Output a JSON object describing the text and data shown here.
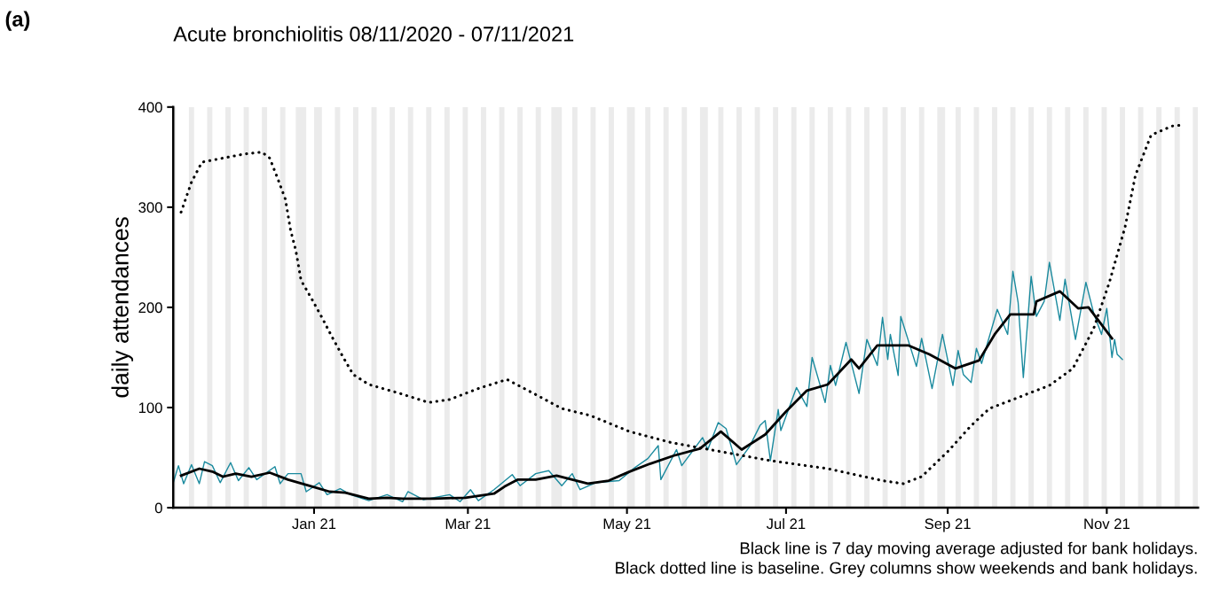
{
  "chart_data": {
    "type": "line",
    "title": "Acute bronchiolitis 08/11/2020 - 07/11/2021",
    "ylabel": "daily attendances",
    "annotations": [
      "(a)",
      "Black line is 7 day moving average adjusted for bank holidays.\nBlack dotted line is baseline. Grey columns show weekends and bank holidays."
    ],
    "xlim": [
      "2020-11-08",
      "2021-12-06"
    ],
    "xticks": [
      {
        "value": "2021-01-01",
        "label": "Jan 21"
      },
      {
        "value": "2021-03-01",
        "label": "Mar 21"
      },
      {
        "value": "2021-05-01",
        "label": "May 21"
      },
      {
        "value": "2021-07-01",
        "label": "Jul 21"
      },
      {
        "value": "2021-09-01",
        "label": "Sep 21"
      },
      {
        "value": "2021-11-01",
        "label": "Nov 21"
      }
    ],
    "ylim": [
      0,
      400
    ],
    "yticks": [
      0,
      100,
      200,
      300,
      400
    ],
    "grid": false,
    "legend": false,
    "series": [
      {
        "color": "#1a8a9e",
        "line_style": "solid",
        "x": [
          "2020-11-08",
          "2020-11-10",
          "2020-11-12",
          "2020-11-15",
          "2020-11-18",
          "2020-11-20",
          "2020-11-23",
          "2020-11-26",
          "2020-11-30",
          "2020-12-03",
          "2020-12-07",
          "2020-12-10",
          "2020-12-17",
          "2020-12-19",
          "2020-12-22",
          "2020-12-27",
          "2020-12-29",
          "2021-01-03",
          "2021-01-06",
          "2021-01-11",
          "2021-01-15",
          "2021-01-22",
          "2021-01-29",
          "2021-02-04",
          "2021-02-06",
          "2021-02-12",
          "2021-02-22",
          "2021-02-26",
          "2021-03-02",
          "2021-03-05",
          "2021-03-11",
          "2021-03-18",
          "2021-03-21",
          "2021-03-27",
          "2021-04-01",
          "2021-04-06",
          "2021-04-10",
          "2021-04-13",
          "2021-04-19",
          "2021-04-28",
          "2021-05-04",
          "2021-05-09",
          "2021-05-13",
          "2021-05-14",
          "2021-05-20",
          "2021-05-22",
          "2021-05-30",
          "2021-06-01",
          "2021-06-05",
          "2021-06-08",
          "2021-06-12",
          "2021-06-17",
          "2021-06-21",
          "2021-06-23",
          "2021-06-25",
          "2021-06-28",
          "2021-06-29",
          "2021-07-05",
          "2021-07-09",
          "2021-07-11",
          "2021-07-16",
          "2021-07-18",
          "2021-07-20",
          "2021-07-24",
          "2021-07-29",
          "2021-08-01",
          "2021-08-05",
          "2021-08-07",
          "2021-08-09",
          "2021-08-10",
          "2021-08-13",
          "2021-08-14",
          "2021-08-20",
          "2021-08-22",
          "2021-08-26",
          "2021-08-30",
          "2021-09-03",
          "2021-09-05",
          "2021-09-07",
          "2021-09-10",
          "2021-09-12",
          "2021-09-14",
          "2021-09-20",
          "2021-09-24",
          "2021-09-26",
          "2021-09-28",
          "2021-09-30",
          "2021-10-03",
          "2021-10-05",
          "2021-10-08",
          "2021-10-10",
          "2021-10-14",
          "2021-10-16",
          "2021-10-20",
          "2021-10-24",
          "2021-10-27",
          "2021-10-30",
          "2021-11-01",
          "2021-11-03",
          "2021-11-04",
          "2021-11-05",
          "2021-11-07"
        ],
        "values": [
          25,
          42,
          24,
          43,
          24,
          46,
          42,
          25,
          45,
          27,
          40,
          28,
          41,
          24,
          34,
          34,
          16,
          25,
          13,
          19,
          13,
          7,
          13,
          6,
          16,
          8,
          13,
          6,
          18,
          7,
          18,
          33,
          22,
          34,
          37,
          22,
          34,
          18,
          25,
          27,
          40,
          49,
          62,
          28,
          58,
          42,
          70,
          58,
          85,
          79,
          43,
          61,
          82,
          87,
          47,
          98,
          77,
          120,
          101,
          150,
          105,
          142,
          122,
          165,
          114,
          168,
          142,
          190,
          148,
          173,
          132,
          191,
          141,
          169,
          119,
          173,
          122,
          157,
          133,
          125,
          159,
          144,
          198,
          173,
          236,
          205,
          130,
          231,
          191,
          206,
          245,
          187,
          228,
          168,
          225,
          194,
          173,
          199,
          150,
          168,
          153,
          148
        ]
      },
      {
        "color": "#000000",
        "line_style": "solid",
        "x": [
          "2020-11-11",
          "2020-11-18",
          "2020-11-23",
          "2020-11-27",
          "2020-12-02",
          "2020-12-08",
          "2020-12-15",
          "2020-12-22",
          "2020-12-30",
          "2021-01-07",
          "2021-01-13",
          "2021-01-22",
          "2021-01-29",
          "2021-02-04",
          "2021-02-16",
          "2021-02-28",
          "2021-03-11",
          "2021-03-15",
          "2021-03-20",
          "2021-03-27",
          "2021-04-04",
          "2021-04-16",
          "2021-04-24",
          "2021-05-02",
          "2021-05-10",
          "2021-05-19",
          "2021-05-29",
          "2021-06-06",
          "2021-06-14",
          "2021-06-23",
          "2021-07-01",
          "2021-07-09",
          "2021-07-17",
          "2021-07-26",
          "2021-07-29",
          "2021-08-05",
          "2021-08-17",
          "2021-08-25",
          "2021-09-04",
          "2021-09-13",
          "2021-09-19",
          "2021-09-25",
          "2021-10-04",
          "2021-10-05",
          "2021-10-14",
          "2021-10-21",
          "2021-10-25",
          "2021-11-03"
        ],
        "values": [
          32,
          39,
          36,
          31,
          34,
          31,
          35,
          28,
          22,
          16,
          15,
          9,
          10,
          9,
          9,
          10,
          14,
          21,
          28,
          28,
          32,
          24,
          27,
          36,
          44,
          52,
          59,
          76,
          58,
          73,
          96,
          117,
          123,
          148,
          139,
          162,
          162,
          153,
          139,
          147,
          173,
          193,
          193,
          206,
          216,
          199,
          200,
          169
        ]
      },
      {
        "color": "#000000",
        "line_style": "dotted",
        "x": [
          "2020-11-11",
          "2020-11-15",
          "2020-11-19",
          "2020-11-27",
          "2020-12-05",
          "2020-12-12",
          "2020-12-15",
          "2020-12-18",
          "2020-12-21",
          "2020-12-23",
          "2020-12-25",
          "2020-12-27",
          "2020-12-31",
          "2021-01-04",
          "2021-01-08",
          "2021-01-12",
          "2021-01-16",
          "2021-01-22",
          "2021-02-03",
          "2021-02-14",
          "2021-02-22",
          "2021-03-05",
          "2021-03-16",
          "2021-03-27",
          "2021-04-06",
          "2021-04-17",
          "2021-05-02",
          "2021-05-18",
          "2021-06-06",
          "2021-06-25",
          "2021-07-17",
          "2021-08-07",
          "2021-08-15",
          "2021-08-22",
          "2021-09-01",
          "2021-09-10",
          "2021-09-17",
          "2021-09-28",
          "2021-10-10",
          "2021-10-19",
          "2021-10-27",
          "2021-11-02",
          "2021-11-08",
          "2021-11-12",
          "2021-11-18",
          "2021-11-26",
          "2021-11-30"
        ],
        "values": [
          295,
          325,
          345,
          349,
          353,
          355,
          349,
          329,
          308,
          277,
          257,
          227,
          209,
          190,
          170,
          151,
          133,
          123,
          114,
          105,
          108,
          119,
          128,
          113,
          99,
          92,
          76,
          65,
          56,
          47,
          39,
          27,
          24,
          31,
          56,
          82,
          99,
          110,
          122,
          139,
          179,
          225,
          280,
          332,
          372,
          381,
          382
        ]
      }
    ],
    "bands": [
      {
        "axis": "x",
        "from": "2020-11-08",
        "to": "2020-11-09",
        "color": "#ebebeb"
      },
      {
        "axis": "x",
        "from": "2020-11-14",
        "to": "2020-11-16",
        "color": "#ebebeb"
      },
      {
        "axis": "x",
        "from": "2020-11-21",
        "to": "2020-11-23",
        "color": "#ebebeb"
      },
      {
        "axis": "x",
        "from": "2020-11-28",
        "to": "2020-11-30",
        "color": "#ebebeb"
      },
      {
        "axis": "x",
        "from": "2020-12-05",
        "to": "2020-12-07",
        "color": "#ebebeb"
      },
      {
        "axis": "x",
        "from": "2020-12-12",
        "to": "2020-12-14",
        "color": "#ebebeb"
      },
      {
        "axis": "x",
        "from": "2020-12-19",
        "to": "2020-12-21",
        "color": "#ebebeb"
      },
      {
        "axis": "x",
        "from": "2020-12-25",
        "to": "2020-12-29",
        "color": "#ebebeb"
      },
      {
        "axis": "x",
        "from": "2021-01-01",
        "to": "2021-01-04",
        "color": "#ebebeb"
      },
      {
        "axis": "x",
        "from": "2021-01-09",
        "to": "2021-01-11",
        "color": "#ebebeb"
      },
      {
        "axis": "x",
        "from": "2021-01-16",
        "to": "2021-01-18",
        "color": "#ebebeb"
      },
      {
        "axis": "x",
        "from": "2021-01-23",
        "to": "2021-01-25",
        "color": "#ebebeb"
      },
      {
        "axis": "x",
        "from": "2021-01-30",
        "to": "2021-02-01",
        "color": "#ebebeb"
      },
      {
        "axis": "x",
        "from": "2021-02-06",
        "to": "2021-02-08",
        "color": "#ebebeb"
      },
      {
        "axis": "x",
        "from": "2021-02-13",
        "to": "2021-02-15",
        "color": "#ebebeb"
      },
      {
        "axis": "x",
        "from": "2021-02-20",
        "to": "2021-02-22",
        "color": "#ebebeb"
      },
      {
        "axis": "x",
        "from": "2021-02-27",
        "to": "2021-03-01",
        "color": "#ebebeb"
      },
      {
        "axis": "x",
        "from": "2021-03-06",
        "to": "2021-03-08",
        "color": "#ebebeb"
      },
      {
        "axis": "x",
        "from": "2021-03-13",
        "to": "2021-03-15",
        "color": "#ebebeb"
      },
      {
        "axis": "x",
        "from": "2021-03-20",
        "to": "2021-03-22",
        "color": "#ebebeb"
      },
      {
        "axis": "x",
        "from": "2021-03-27",
        "to": "2021-03-29",
        "color": "#ebebeb"
      },
      {
        "axis": "x",
        "from": "2021-04-02",
        "to": "2021-04-06",
        "color": "#ebebeb"
      },
      {
        "axis": "x",
        "from": "2021-04-10",
        "to": "2021-04-12",
        "color": "#ebebeb"
      },
      {
        "axis": "x",
        "from": "2021-04-17",
        "to": "2021-04-19",
        "color": "#ebebeb"
      },
      {
        "axis": "x",
        "from": "2021-04-24",
        "to": "2021-04-26",
        "color": "#ebebeb"
      },
      {
        "axis": "x",
        "from": "2021-05-01",
        "to": "2021-05-04",
        "color": "#ebebeb"
      },
      {
        "axis": "x",
        "from": "2021-05-08",
        "to": "2021-05-10",
        "color": "#ebebeb"
      },
      {
        "axis": "x",
        "from": "2021-05-15",
        "to": "2021-05-17",
        "color": "#ebebeb"
      },
      {
        "axis": "x",
        "from": "2021-05-22",
        "to": "2021-05-24",
        "color": "#ebebeb"
      },
      {
        "axis": "x",
        "from": "2021-05-29",
        "to": "2021-06-01",
        "color": "#ebebeb"
      },
      {
        "axis": "x",
        "from": "2021-06-05",
        "to": "2021-06-07",
        "color": "#ebebeb"
      },
      {
        "axis": "x",
        "from": "2021-06-12",
        "to": "2021-06-14",
        "color": "#ebebeb"
      },
      {
        "axis": "x",
        "from": "2021-06-19",
        "to": "2021-06-21",
        "color": "#ebebeb"
      },
      {
        "axis": "x",
        "from": "2021-06-26",
        "to": "2021-06-28",
        "color": "#ebebeb"
      },
      {
        "axis": "x",
        "from": "2021-07-03",
        "to": "2021-07-05",
        "color": "#ebebeb"
      },
      {
        "axis": "x",
        "from": "2021-07-10",
        "to": "2021-07-12",
        "color": "#ebebeb"
      },
      {
        "axis": "x",
        "from": "2021-07-17",
        "to": "2021-07-19",
        "color": "#ebebeb"
      },
      {
        "axis": "x",
        "from": "2021-07-24",
        "to": "2021-07-26",
        "color": "#ebebeb"
      },
      {
        "axis": "x",
        "from": "2021-07-31",
        "to": "2021-08-02",
        "color": "#ebebeb"
      },
      {
        "axis": "x",
        "from": "2021-08-07",
        "to": "2021-08-09",
        "color": "#ebebeb"
      },
      {
        "axis": "x",
        "from": "2021-08-14",
        "to": "2021-08-16",
        "color": "#ebebeb"
      },
      {
        "axis": "x",
        "from": "2021-08-21",
        "to": "2021-08-23",
        "color": "#ebebeb"
      },
      {
        "axis": "x",
        "from": "2021-08-28",
        "to": "2021-08-31",
        "color": "#ebebeb"
      },
      {
        "axis": "x",
        "from": "2021-09-04",
        "to": "2021-09-06",
        "color": "#ebebeb"
      },
      {
        "axis": "x",
        "from": "2021-09-11",
        "to": "2021-09-13",
        "color": "#ebebeb"
      },
      {
        "axis": "x",
        "from": "2021-09-18",
        "to": "2021-09-20",
        "color": "#ebebeb"
      },
      {
        "axis": "x",
        "from": "2021-09-25",
        "to": "2021-09-27",
        "color": "#ebebeb"
      },
      {
        "axis": "x",
        "from": "2021-10-02",
        "to": "2021-10-04",
        "color": "#ebebeb"
      },
      {
        "axis": "x",
        "from": "2021-10-09",
        "to": "2021-10-11",
        "color": "#ebebeb"
      },
      {
        "axis": "x",
        "from": "2021-10-16",
        "to": "2021-10-18",
        "color": "#ebebeb"
      },
      {
        "axis": "x",
        "from": "2021-10-23",
        "to": "2021-10-25",
        "color": "#ebebeb"
      },
      {
        "axis": "x",
        "from": "2021-10-30",
        "to": "2021-11-01",
        "color": "#ebebeb"
      },
      {
        "axis": "x",
        "from": "2021-11-06",
        "to": "2021-11-08",
        "color": "#ebebeb"
      },
      {
        "axis": "x",
        "from": "2021-11-13",
        "to": "2021-11-15",
        "color": "#ebebeb"
      },
      {
        "axis": "x",
        "from": "2021-11-20",
        "to": "2021-11-22",
        "color": "#ebebeb"
      },
      {
        "axis": "x",
        "from": "2021-11-27",
        "to": "2021-11-29",
        "color": "#ebebeb"
      },
      {
        "axis": "x",
        "from": "2021-12-04",
        "to": "2021-12-06",
        "color": "#ebebeb"
      }
    ]
  }
}
